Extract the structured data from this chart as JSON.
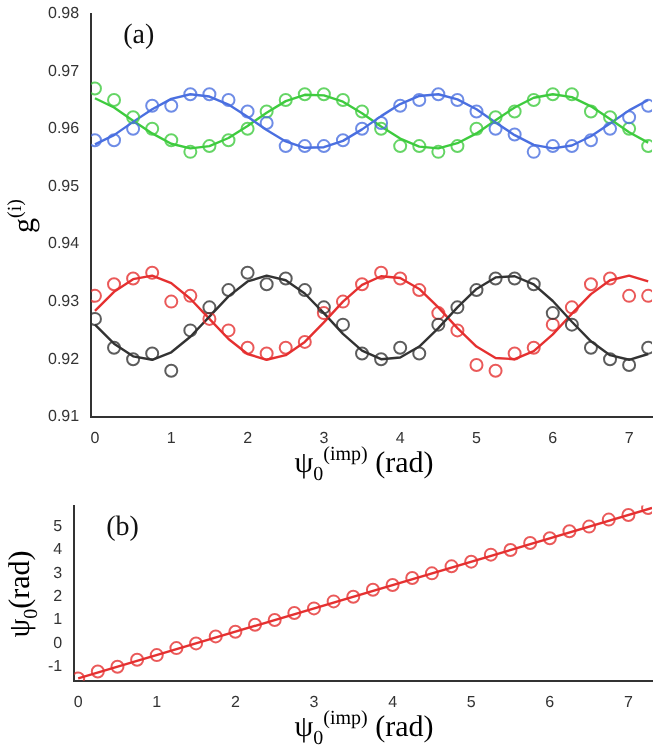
{
  "chart_data": [
    {
      "type": "scatter",
      "annotations": [
        "(a)"
      ],
      "xlabel": "ψ$_{0}$$^{(imp)}$ (rad)",
      "ylabel": "g$^{(i)}$",
      "marker": "circle",
      "x": [
        0,
        0.25,
        0.5,
        0.75,
        1,
        1.25,
        1.5,
        1.75,
        2,
        2.25,
        2.5,
        2.75,
        3,
        3.25,
        3.5,
        3.75,
        4,
        4.25,
        4.5,
        4.75,
        5,
        5.25,
        5.5,
        5.75,
        6,
        6.25,
        6.5,
        6.75,
        7,
        7.25
      ],
      "xlim": [
        -0.05,
        7.3
      ],
      "xticks": [
        0,
        1,
        2,
        3,
        4,
        5,
        6,
        7
      ],
      "ylim": [
        0.91,
        0.98
      ],
      "yticks": [
        0.91,
        0.92,
        0.93,
        0.94,
        0.95,
        0.96,
        0.97,
        0.98
      ],
      "series": [
        {
          "color": "#4a6fe0",
          "values": [
            0.958,
            0.958,
            0.96,
            0.964,
            0.964,
            0.966,
            0.966,
            0.965,
            0.963,
            0.961,
            0.957,
            0.957,
            0.957,
            0.958,
            0.96,
            0.961,
            0.964,
            0.965,
            0.966,
            0.965,
            0.963,
            0.96,
            0.959,
            0.956,
            0.957,
            0.957,
            0.958,
            0.96,
            0.962,
            0.964
          ]
        },
        {
          "color": "#3ecb3e",
          "values": [
            0.967,
            0.965,
            0.962,
            0.96,
            0.958,
            0.956,
            0.957,
            0.958,
            0.96,
            0.963,
            0.965,
            0.966,
            0.966,
            0.965,
            0.963,
            0.96,
            0.957,
            0.957,
            0.956,
            0.957,
            0.96,
            0.962,
            0.963,
            0.965,
            0.966,
            0.966,
            0.963,
            0.962,
            0.96,
            0.957
          ]
        },
        {
          "color": "#333333",
          "values": [
            0.927,
            0.922,
            0.92,
            0.921,
            0.918,
            0.925,
            0.929,
            0.932,
            0.935,
            0.933,
            0.934,
            0.932,
            0.929,
            0.926,
            0.921,
            0.92,
            0.922,
            0.921,
            0.926,
            0.929,
            0.932,
            0.934,
            0.934,
            0.933,
            0.928,
            0.926,
            0.922,
            0.92,
            0.919,
            0.922
          ]
        },
        {
          "color": "#e53030",
          "values": [
            0.931,
            0.933,
            0.934,
            0.935,
            0.93,
            0.931,
            0.927,
            0.925,
            0.922,
            0.921,
            0.922,
            0.923,
            0.928,
            0.93,
            0.933,
            0.935,
            0.934,
            0.932,
            0.928,
            0.925,
            0.919,
            0.918,
            0.921,
            0.922,
            0.926,
            0.929,
            0.933,
            0.934,
            0.931,
            0.931
          ]
        },
        {
          "type": "line",
          "marker": "none",
          "color": "#4a6fe0",
          "values": [
            0.9573,
            0.9589,
            0.9612,
            0.9634,
            0.9652,
            0.966,
            0.9656,
            0.9642,
            0.9621,
            0.9598,
            0.9578,
            0.9567,
            0.9568,
            0.9579,
            0.9599,
            0.9622,
            0.9643,
            0.9657,
            0.966,
            0.9651,
            0.9634,
            0.9611,
            0.9589,
            0.9572,
            0.9566,
            0.9571,
            0.9587,
            0.9609,
            0.9632,
            0.965
          ]
        },
        {
          "type": "line",
          "marker": "none",
          "color": "#3ecb3e",
          "values": [
            0.9653,
            0.9637,
            0.9614,
            0.9592,
            0.9574,
            0.9566,
            0.957,
            0.9584,
            0.9605,
            0.9628,
            0.9648,
            0.9659,
            0.9658,
            0.9647,
            0.9627,
            0.9604,
            0.9583,
            0.9569,
            0.9566,
            0.9575,
            0.9592,
            0.9615,
            0.9637,
            0.9654,
            0.966,
            0.9655,
            0.9639,
            0.9617,
            0.9594,
            0.9576
          ]
        },
        {
          "type": "line",
          "marker": "none",
          "color": "#333333",
          "values": [
            0.926,
            0.9227,
            0.9205,
            0.9199,
            0.9212,
            0.9239,
            0.9274,
            0.9309,
            0.9335,
            0.9345,
            0.9337,
            0.9314,
            0.928,
            0.9244,
            0.9215,
            0.92,
            0.9203,
            0.9222,
            0.9254,
            0.929,
            0.9322,
            0.9342,
            0.9344,
            0.933,
            0.9301,
            0.9265,
            0.9231,
            0.9207,
            0.9199,
            0.9209
          ]
        },
        {
          "type": "line",
          "marker": "none",
          "color": "#e53030",
          "values": [
            0.9284,
            0.9317,
            0.9339,
            0.9345,
            0.9332,
            0.9305,
            0.927,
            0.9235,
            0.9209,
            0.9199,
            0.9207,
            0.923,
            0.9264,
            0.93,
            0.9329,
            0.9344,
            0.9341,
            0.9322,
            0.929,
            0.9254,
            0.9222,
            0.9202,
            0.92,
            0.9214,
            0.9243,
            0.9279,
            0.9313,
            0.9337,
            0.9345,
            0.9335
          ]
        }
      ]
    },
    {
      "type": "scatter",
      "annotations": [
        "(b)"
      ],
      "xlabel": "ψ$_{0}$$^{(imp)}$ (rad)",
      "ylabel": "ψ$_{0}$(rad)",
      "marker": "circle",
      "x": [
        0,
        0.25,
        0.5,
        0.75,
        1,
        1.25,
        1.5,
        1.75,
        2,
        2.25,
        2.5,
        2.75,
        3,
        3.25,
        3.5,
        3.75,
        4,
        4.25,
        4.5,
        4.75,
        5,
        5.25,
        5.5,
        5.75,
        6,
        6.25,
        6.5,
        6.75,
        7,
        7.25
      ],
      "xlim": [
        -0.05,
        7.3
      ],
      "xticks": [
        0,
        1,
        2,
        3,
        4,
        5,
        6,
        7
      ],
      "ylim": [
        -1.6,
        5.9
      ],
      "yticks": [
        -1,
        0,
        1,
        2,
        3,
        4,
        5
      ],
      "series": [
        {
          "color": "#e53030",
          "values": [
            -1.5,
            -1.2,
            -1.0,
            -0.7,
            -0.5,
            -0.2,
            0.0,
            0.3,
            0.5,
            0.8,
            1.0,
            1.3,
            1.5,
            1.8,
            2.0,
            2.3,
            2.5,
            2.8,
            3.0,
            3.3,
            3.5,
            3.8,
            4.0,
            4.3,
            4.5,
            4.8,
            5.0,
            5.3,
            5.5,
            5.8
          ]
        },
        {
          "type": "line",
          "marker": "none",
          "color": "#e53030",
          "x": [
            0,
            7.3
          ],
          "values": [
            -1.5,
            5.8
          ]
        }
      ]
    }
  ]
}
